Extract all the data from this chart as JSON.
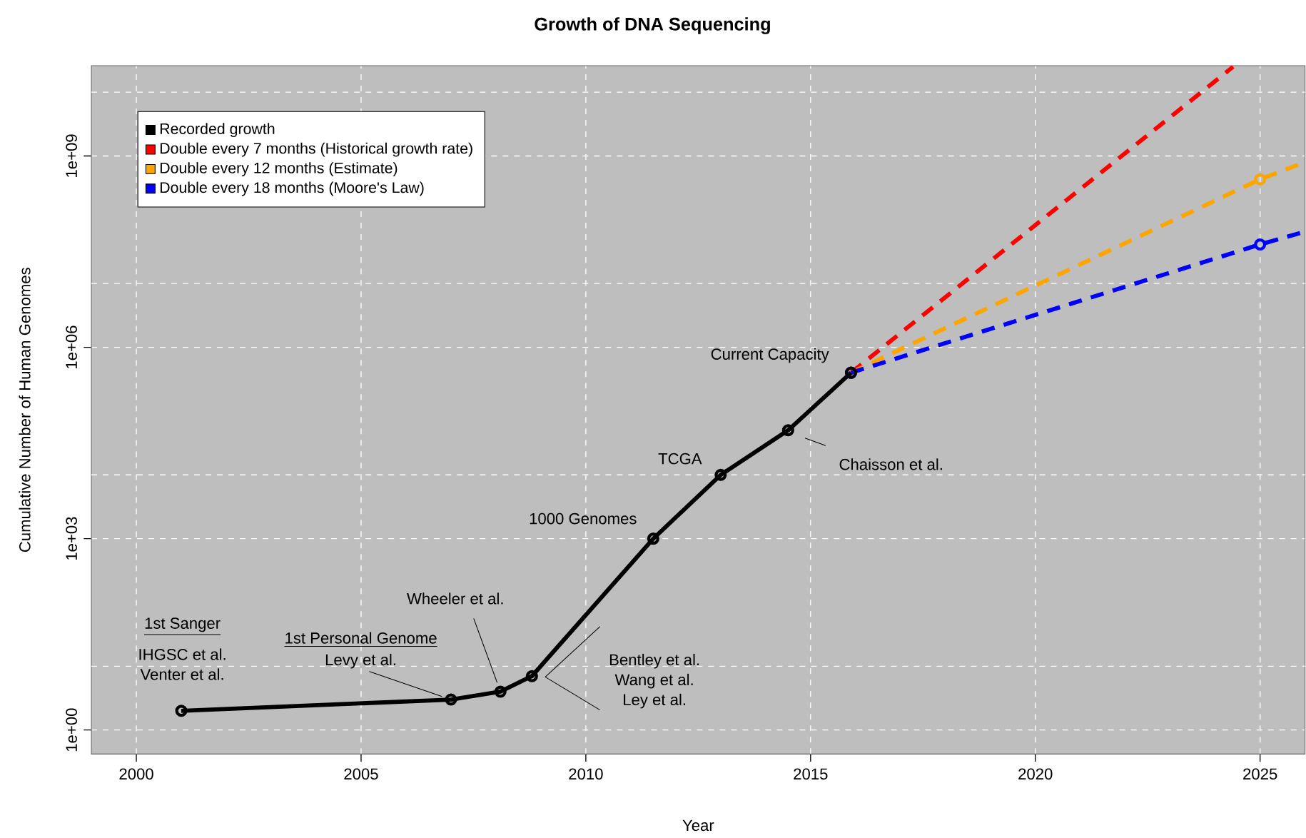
{
  "chart_data": {
    "type": "line",
    "title": "Growth of DNA Sequencing",
    "xlabel": "Year",
    "ylabel": "Cumulative Number of Human Genomes",
    "log": "y",
    "grid": true,
    "legend": "top left",
    "xlim": [
      1999,
      2026
    ],
    "ylim": [
      0.42,
      26000000000
    ],
    "xticks": [
      2000,
      2005,
      2010,
      2015,
      2020,
      2025
    ],
    "yticks": [
      {
        "value": 1,
        "label": "1e+00"
      },
      {
        "value": 10,
        "label": null
      },
      {
        "value": 1000,
        "label": "1e+03"
      },
      {
        "value": 10000,
        "label": null
      },
      {
        "value": 1000000,
        "label": "1e+06"
      },
      {
        "value": 10000000,
        "label": null
      },
      {
        "value": 1000000000,
        "label": "1e+09"
      },
      {
        "value": 10000000000,
        "label": null
      }
    ],
    "series": [
      {
        "name": "Recorded growth",
        "color": "#000000",
        "marker": "circle",
        "line_style": "solid",
        "x": [
          2001,
          2007,
          2008.1,
          2008.8,
          2011.5,
          2013,
          2014.5,
          2015.9
        ],
        "values": [
          2,
          3,
          4,
          7,
          1000,
          10000,
          50000,
          400000
        ]
      },
      {
        "name": "Double every 7 months (Historical growth rate)",
        "color": "#ff0000",
        "marker": "none",
        "line_style": "dashed",
        "x": [
          2015.9,
          2024.4
        ],
        "values": [
          400000,
          25000000000
        ]
      },
      {
        "name": "Double every 12 months (Estimate)",
        "color": "#ffa500",
        "marker": "circle",
        "line_style": "dashed",
        "x": [
          2015.9,
          2025,
          2026
        ],
        "values": [
          400000,
          430000000,
          800000000
        ]
      },
      {
        "name": "Double every 18 months (Moore's Law)",
        "color": "#0000ff",
        "marker": "circle",
        "line_style": "dashed",
        "x": [
          2015.9,
          2025,
          2026
        ],
        "values": [
          400000,
          41000000,
          65000000
        ]
      }
    ],
    "annotations": [
      "1st Sanger",
      "IHGSC et al.",
      "Venter et al.",
      "1st Personal Genome",
      {
        "text": "Levy et al.",
        "x": 2007,
        "y": 3
      },
      {
        "text": "Wheeler et al.",
        "x": 2008.1,
        "y": 4
      },
      "Bentley et al.",
      "Wang et al.",
      "Ley et al.",
      "1000 Genomes",
      "TCGA",
      "Chaisson et al.",
      "Current Capacity"
    ]
  }
}
